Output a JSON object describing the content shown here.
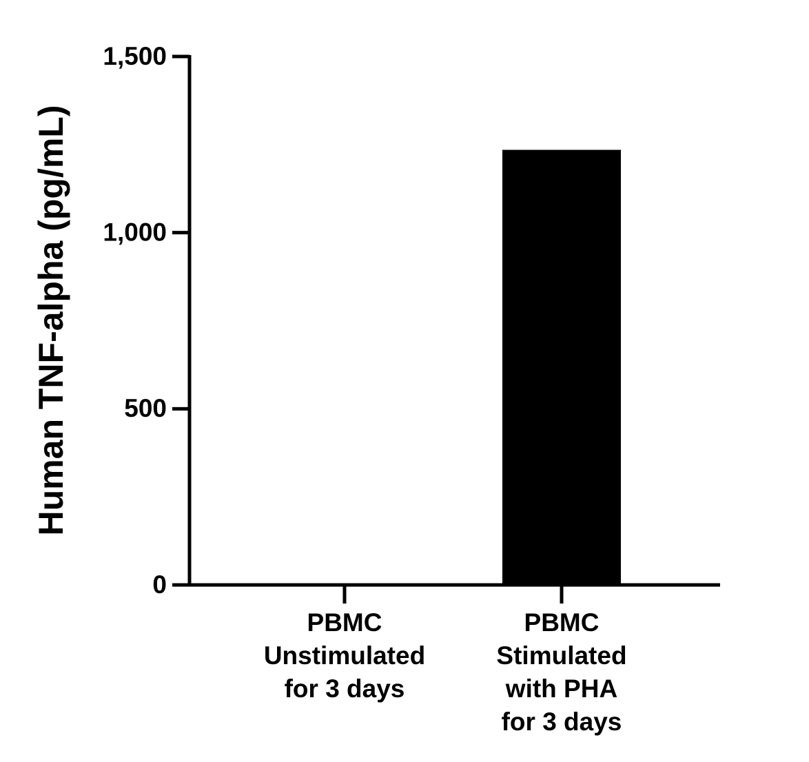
{
  "chart_data": {
    "type": "bar",
    "y_label": "Human TNF-alpha (pg/mL)",
    "categories": [
      [
        "PBMC",
        "Unstimulated",
        "for 3 days"
      ],
      [
        "PBMC",
        "Stimulated",
        "with PHA",
        "for 3 days"
      ]
    ],
    "values": [
      0,
      1235
    ],
    "color": "#000000",
    "ylim": [
      0,
      1500
    ],
    "yticks": [
      0,
      500,
      {
        "value": 1000,
        "label": "1,000"
      },
      {
        "value": 1500,
        "label": "1,500"
      }
    ]
  }
}
